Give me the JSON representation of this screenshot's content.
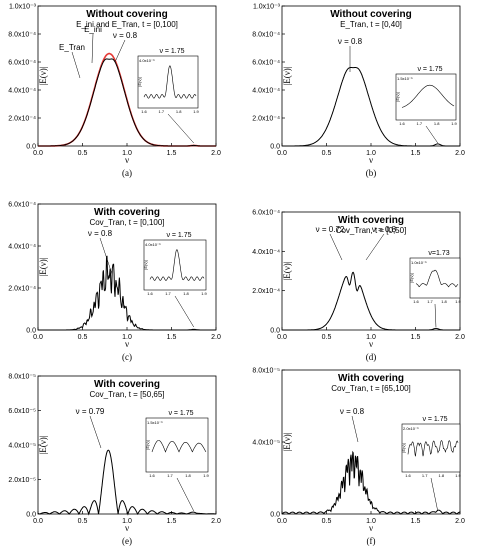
{
  "figure": {
    "panels": [
      {
        "letter": "(a)",
        "title": "Without covering",
        "subtitle": "E_ini  and  E_Tran, t = [0,100]",
        "ylabel": "|E(ν)|",
        "xlabel": "ν",
        "y_ticks": [
          "0.0",
          "2.0x10⁻⁴",
          "4.0x10⁻⁴",
          "6.0x10⁻⁴",
          "8.0x10⁻⁴",
          "1.0x10⁻³"
        ],
        "x_ticks": [
          "0.0",
          "0.5",
          "1.0",
          "1.5",
          "2.0"
        ],
        "annotations": [
          "E_ini",
          "E_Tran",
          "ν = 0.8"
        ],
        "inset": {
          "label": "ν = 1.75",
          "y_tick": "4.0x10⁻⁶",
          "x_ticks": [
            "1.6",
            "1.7",
            "1.8",
            "1.9"
          ],
          "ylabel": "|E(ν)|"
        }
      },
      {
        "letter": "(b)",
        "title": "Without covering",
        "subtitle": "E_Tran, t = [0,40]",
        "ylabel": "|E(ν)|",
        "xlabel": "ν",
        "y_ticks": [
          "0.0",
          "2.0x10⁻⁴",
          "4.0x10⁻⁴",
          "6.0x10⁻⁴",
          "8.0x10⁻⁴",
          "1.0x10⁻³"
        ],
        "x_ticks": [
          "0.0",
          "0.5",
          "1.0",
          "1.5",
          "2.0"
        ],
        "annotations": [
          "ν = 0.8"
        ],
        "inset": {
          "label": "ν = 1.75",
          "y_tick": "1.5x10⁻⁵",
          "x_ticks": [
            "1.6",
            "1.7",
            "1.8",
            "1.9"
          ],
          "ylabel": "|E(ν)|"
        }
      },
      {
        "letter": "(c)",
        "title": "With covering",
        "subtitle": "Cov_Tran, t = [0,100]",
        "ylabel": "|E(ν)|",
        "xlabel": "ν",
        "y_ticks": [
          "0.0",
          "2.0x10⁻⁴",
          "4.0x10⁻⁴",
          "6.0x10⁻⁴"
        ],
        "x_ticks": [
          "0.0",
          "0.5",
          "1.0",
          "1.5",
          "2.0"
        ],
        "annotations": [
          "ν = 0.8"
        ],
        "inset": {
          "label": "ν = 1.75",
          "y_tick": "4.0x10⁻⁶",
          "x_ticks": [
            "1.6",
            "1.7",
            "1.8",
            "1.9"
          ],
          "ylabel": "|E(ν)|"
        }
      },
      {
        "letter": "(d)",
        "title": "With covering",
        "subtitle": "Cov_Tran, t = [0,50]",
        "ylabel": "|E(ν)|",
        "xlabel": "ν",
        "y_ticks": [
          "0.0",
          "2.0x10⁻⁴",
          "4.0x10⁻⁴",
          "6.0x10⁻⁴"
        ],
        "x_ticks": [
          "0.0",
          "0.5",
          "1.0",
          "1.5",
          "2.0"
        ],
        "annotations": [
          "ν = 0.72",
          "ν = 0.8"
        ],
        "inset": {
          "label": "ν=1.73",
          "y_tick": "1.0x10⁻⁵",
          "x_ticks": [
            "1.6",
            "1.7",
            "1.8",
            "1.9"
          ],
          "ylabel": "|E(ν)|"
        }
      },
      {
        "letter": "(e)",
        "title": "With covering",
        "subtitle": "Cov_Tran, t = [50,65]",
        "ylabel": "|E(ν)|",
        "xlabel": "ν",
        "y_ticks": [
          "0.0",
          "2.0x10⁻⁵",
          "4.0x10⁻⁵",
          "6.0x10⁻⁵",
          "8.0x10⁻⁵"
        ],
        "x_ticks": [
          "0.0",
          "0.5",
          "1.0",
          "1.5",
          "2.0"
        ],
        "annotations": [
          "ν = 0.79"
        ],
        "inset": {
          "label": "ν = 1.75",
          "y_tick": "1.5x10⁻⁶",
          "x_ticks": [
            "1.6",
            "1.7",
            "1.8",
            "1.9"
          ],
          "ylabel": "|E(ν)|"
        }
      },
      {
        "letter": "(f)",
        "title": "With covering",
        "subtitle": "Cov_Tran, t = [65,100]",
        "ylabel": "|E(ν)|",
        "xlabel": "ν",
        "y_ticks": [
          "0.0",
          "4.0x10⁻⁵",
          "8.0x10⁻⁵"
        ],
        "x_ticks": [
          "0.0",
          "0.5",
          "1.0",
          "1.5",
          "2.0"
        ],
        "annotations": [
          "ν = 0.8"
        ],
        "inset": {
          "label": "ν = 1.75",
          "y_tick": "2.0x10⁻⁶",
          "x_ticks": [
            "1.6",
            "1.7",
            "1.8",
            "1.9"
          ],
          "ylabel": "|E(ν)|"
        }
      }
    ]
  },
  "chart_data": [
    {
      "type": "line",
      "title": "Without covering",
      "subtitle": "E_ini  and  E_Tran, t = [0,100]",
      "xlabel": "ν",
      "ylabel": "|E(ν)|",
      "xlim": [
        0,
        2
      ],
      "ylim": [
        0,
        0.001
      ],
      "series": [
        {
          "name": "E_ini",
          "color": "#e53935",
          "shape": "gauss",
          "center": 0.8,
          "sigma": 0.17,
          "peak": 0.00066
        },
        {
          "name": "E_Tran",
          "color": "#000000",
          "shape": "gauss",
          "center": 0.8,
          "sigma": 0.17,
          "peak": 0.00065,
          "dip": 3e-05
        }
      ],
      "secondary_peak": {
        "x": 1.75,
        "peak": 4e-06
      }
    },
    {
      "type": "line",
      "title": "Without covering",
      "subtitle": "E_Tran, t = [0,40]",
      "xlabel": "ν",
      "ylabel": "|E(ν)|",
      "xlim": [
        0,
        2
      ],
      "ylim": [
        0,
        0.001
      ],
      "series": [
        {
          "name": "E_Tran",
          "color": "#000000",
          "shape": "double",
          "center": 0.8,
          "sigma": 0.17,
          "peak": 0.0006,
          "dip": 4e-05
        }
      ],
      "secondary_peak": {
        "x": 1.75,
        "peak": 1.5e-05
      }
    },
    {
      "type": "line",
      "title": "With covering",
      "subtitle": "Cov_Tran, t = [0,100]",
      "xlabel": "ν",
      "ylabel": "|E(ν)|",
      "xlim": [
        0,
        2
      ],
      "ylim": [
        0,
        0.0006
      ],
      "series": [
        {
          "name": "Cov_Tran",
          "color": "#000000",
          "shape": "noisy",
          "center": 0.8,
          "sigma": 0.13,
          "peak": 0.0003
        }
      ],
      "secondary_peak": {
        "x": 1.75,
        "peak": 3e-06
      }
    },
    {
      "type": "line",
      "title": "With covering",
      "subtitle": "Cov_Tran, t = [0,50]",
      "xlabel": "ν",
      "ylabel": "|E(ν)|",
      "xlim": [
        0,
        2
      ],
      "ylim": [
        0,
        0.0006
      ],
      "series": [
        {
          "name": "Cov_Tran",
          "color": "#000000",
          "shape": "triple",
          "center": 0.78,
          "sigma": 0.13,
          "peak": 0.00031,
          "dips": [
            0.72,
            0.8
          ]
        }
      ],
      "secondary_peak": {
        "x": 1.73,
        "peak": 8e-06
      }
    },
    {
      "type": "line",
      "title": "With covering",
      "subtitle": "Cov_Tran, t = [50,65]",
      "xlabel": "ν",
      "ylabel": "|E(ν)|",
      "xlim": [
        0,
        2
      ],
      "ylim": [
        0,
        8e-05
      ],
      "series": [
        {
          "name": "Cov_Tran",
          "color": "#000000",
          "shape": "sinc",
          "center": 0.79,
          "peak": 3.7e-05,
          "sidelobe_spacing": 0.11
        }
      ],
      "secondary_peak": {
        "x": 1.75,
        "peak": 8e-07
      }
    },
    {
      "type": "line",
      "title": "With covering",
      "subtitle": "Cov_Tran, t = [65,100]",
      "xlabel": "ν",
      "ylabel": "|E(ν)|",
      "xlim": [
        0,
        2
      ],
      "ylim": [
        0,
        8e-05
      ],
      "series": [
        {
          "name": "Cov_Tran",
          "color": "#000000",
          "shape": "spiky",
          "center": 0.8,
          "sigma": 0.11,
          "peak": 3.6e-05
        }
      ],
      "secondary_peak": {
        "x": 1.75,
        "peak": 1.2e-06
      }
    }
  ]
}
